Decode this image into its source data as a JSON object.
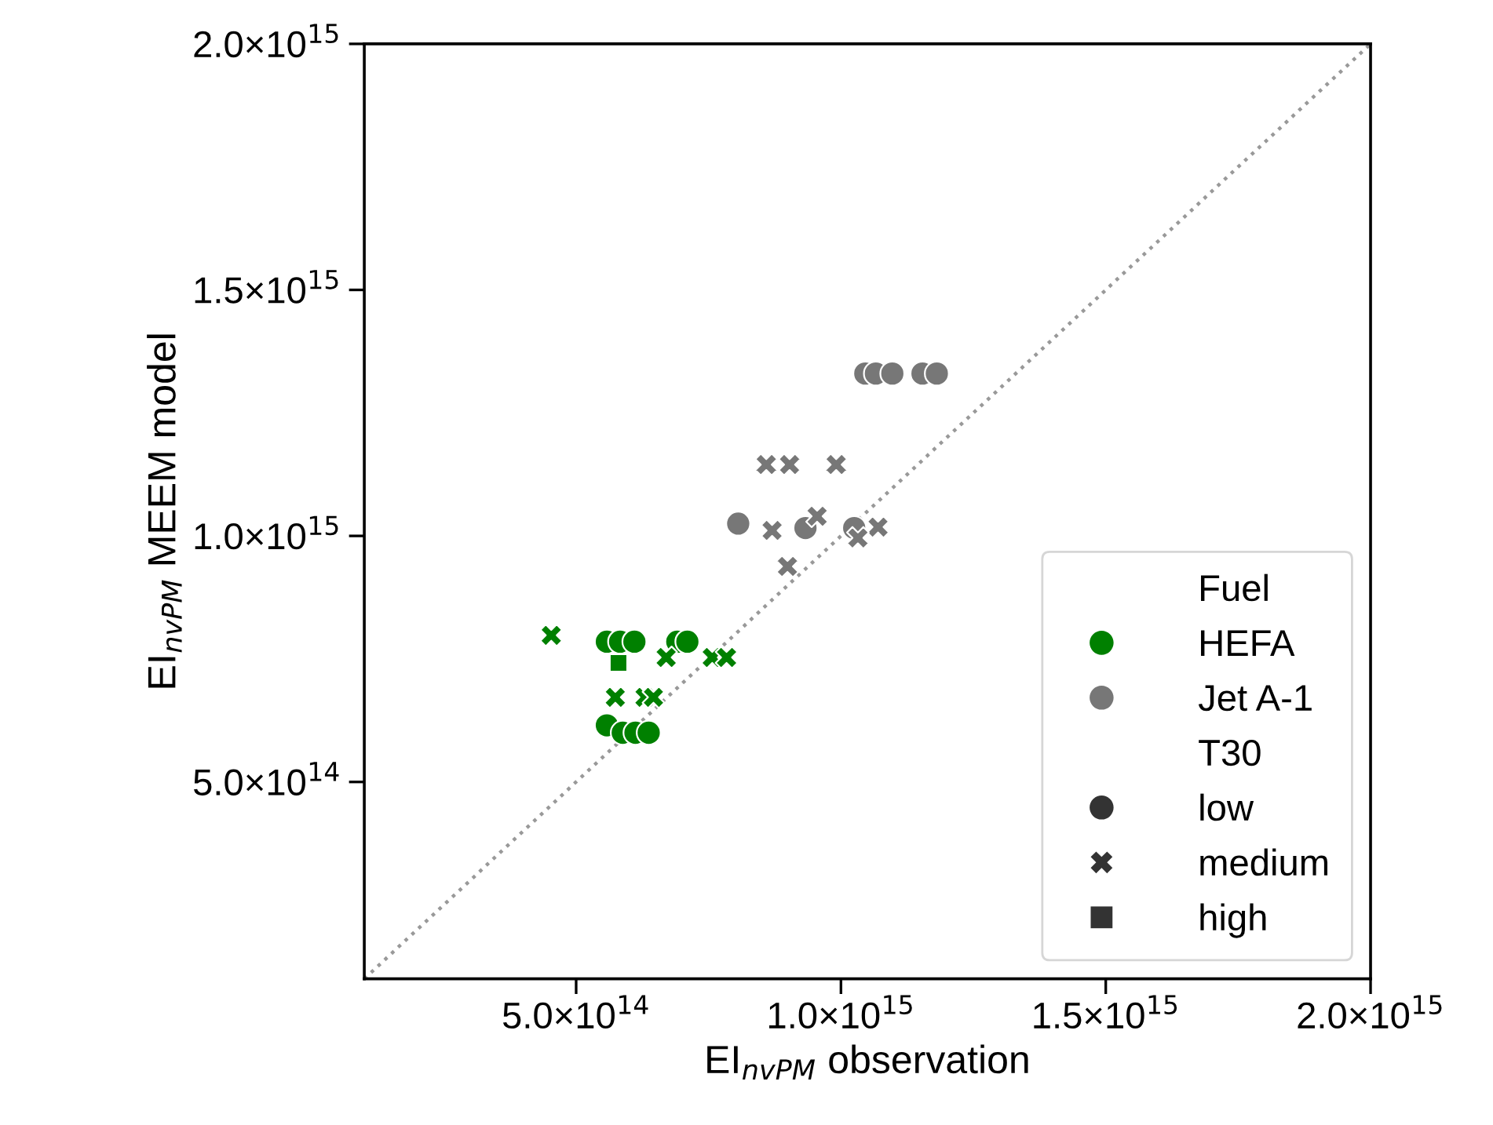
{
  "chart_data": {
    "type": "scatter",
    "xlabel": "EI$_{nvPM}$ observation",
    "ylabel": "EI$_{nvPM}$ MEEM model",
    "xlim": [
      100000000000000.0,
      2000000000000000.0
    ],
    "ylim": [
      100000000000000.0,
      2000000000000000.0
    ],
    "xticks": [
      {
        "value": 500000000000000.0,
        "label": "5.0×10$^{14}$"
      },
      {
        "value": 1000000000000000.0,
        "label": "1.0×10$^{15}$"
      },
      {
        "value": 1500000000000000.0,
        "label": "1.5×10$^{15}$"
      },
      {
        "value": 2000000000000000.0,
        "label": "2.0×10$^{15}$"
      }
    ],
    "yticks": [
      {
        "value": 500000000000000.0,
        "label": "5.0×10$^{14}$"
      },
      {
        "value": 1000000000000000.0,
        "label": "1.0×10$^{15}$"
      },
      {
        "value": 1500000000000000.0,
        "label": "1.5×10$^{15}$"
      },
      {
        "value": 2000000000000000.0,
        "label": "2.0×10$^{15}$"
      }
    ],
    "grid": false,
    "legend": "bottom right",
    "legend_title": "Fuel",
    "annotations": [
      "T30"
    ],
    "series": [
      {
        "type": "line",
        "color": "#999999",
        "line_style": "dotted",
        "x": [
          100000000000000.0,
          2000000000000000.0
        ],
        "values": [
          100000000000000.0,
          2000000000000000.0
        ]
      },
      {
        "name": "HEFA",
        "color": "#008000",
        "marker": "circle",
        "x": [
          558000000000000.0,
          583000000000000.0,
          610000000000000.0,
          691000000000000.0,
          710000000000000.0,
          558000000000000.0,
          588000000000000.0,
          612000000000000.0,
          637000000000000.0
        ],
        "values": [
          785000000000000.0,
          785000000000000.0,
          785000000000000.0,
          785000000000000.0,
          785000000000000.0,
          615000000000000.0,
          600000000000000.0,
          600000000000000.0,
          600000000000000.0
        ]
      },
      {
        "name": "Jet A-1",
        "color": "#777777",
        "marker": "circle",
        "x": [
          1046000000000000.0,
          1066000000000000.0,
          1097000000000000.0,
          1154000000000000.0,
          1181000000000000.0,
          806000000000000.0,
          933000000000000.0,
          1025000000000000.0
        ],
        "values": [
          1330000000000000.0,
          1330000000000000.0,
          1330000000000000.0,
          1330000000000000.0,
          1330000000000000.0,
          1025000000000000.0,
          1016000000000000.0,
          1016000000000000.0
        ]
      },
      {
        "color": "#777777",
        "marker": "cross",
        "x": [
          859000000000000.0,
          903000000000000.0,
          991000000000000.0,
          870000000000000.0,
          955000000000000.0,
          1070000000000000.0,
          1032000000000000.0,
          899000000000000.0
        ],
        "values": [
          1145000000000000.0,
          1145000000000000.0,
          1145000000000000.0,
          1011000000000000.0,
          1040000000000000.0,
          1018000000000000.0,
          996000000000000.0,
          938000000000000.0
        ]
      },
      {
        "color": "#008000",
        "marker": "cross",
        "x": [
          453000000000000.0,
          670000000000000.0,
          757000000000000.0,
          784000000000000.0,
          574000000000000.0,
          630000000000000.0,
          646000000000000.0
        ],
        "values": [
          798000000000000.0,
          753000000000000.0,
          753000000000000.0,
          753000000000000.0,
          672000000000000.0,
          672000000000000.0,
          672000000000000.0
        ]
      },
      {
        "color": "#008000",
        "marker": "square",
        "x": [
          580000000000000.0
        ],
        "values": [
          742000000000000.0
        ]
      },
      {
        "name": "low",
        "color": "#333333",
        "marker": "circle"
      },
      {
        "name": "medium",
        "color": "#333333",
        "marker": "cross"
      },
      {
        "name": "high",
        "color": "#333333",
        "marker": "square"
      }
    ]
  }
}
